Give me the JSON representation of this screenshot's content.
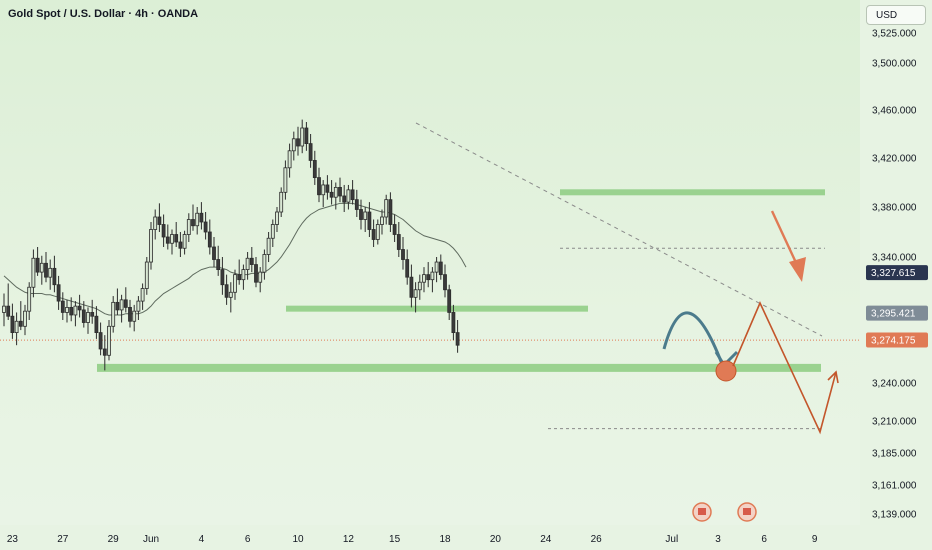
{
  "header": {
    "title": "Gold Spot / U.S. Dollar · 4h · OANDA",
    "currency": "USD"
  },
  "colors": {
    "up": "#26a69a",
    "down": "#ef5350",
    "candle_body": "#9c9c9c",
    "ma": "#5f6b5f",
    "zone": "#9ad28f",
    "forecast_blue": "#4b7b8c",
    "forecast_orange": "#c3562b",
    "badge_dark": "#2a3550",
    "badge_gray": "#7f8c97",
    "badge_orange": "#e07a55"
  },
  "chart_data": {
    "type": "candlestick",
    "symbol": "Gold Spot / U.S. Dollar",
    "interval": "4h",
    "source": "OANDA",
    "ylim": [
      3125,
      3540
    ],
    "y_ticks": [
      {
        "v": 3525,
        "label": "3,525.000"
      },
      {
        "v": 3500,
        "label": "3,500.000"
      },
      {
        "v": 3460,
        "label": "3,460.000"
      },
      {
        "v": 3420,
        "label": "3,420.000"
      },
      {
        "v": 3380,
        "label": "3,380.000"
      },
      {
        "v": 3340,
        "label": "3,340.000"
      },
      {
        "v": 3240,
        "label": "3,240.000"
      },
      {
        "v": 3210,
        "label": "3,210.000"
      },
      {
        "v": 3185,
        "label": "3,185.000"
      },
      {
        "v": 3161,
        "label": "3,161.000"
      },
      {
        "v": 3139,
        "label": "3,139.000"
      }
    ],
    "x_ticks": [
      {
        "i": 2,
        "label": "23"
      },
      {
        "i": 14,
        "label": "27"
      },
      {
        "i": 26,
        "label": "29"
      },
      {
        "i": 35,
        "label": "Jun"
      },
      {
        "i": 47,
        "label": "4"
      },
      {
        "i": 58,
        "label": "6"
      },
      {
        "i": 70,
        "label": "10"
      },
      {
        "i": 82,
        "label": "12"
      },
      {
        "i": 93,
        "label": "15"
      },
      {
        "i": 105,
        "label": "18"
      },
      {
        "i": 117,
        "label": "20"
      },
      {
        "i": 129,
        "label": "24"
      },
      {
        "i": 141,
        "label": "26"
      },
      {
        "i": 159,
        "label": "Jul"
      },
      {
        "i": 170,
        "label": "3"
      },
      {
        "i": 181,
        "label": "6"
      },
      {
        "i": 193,
        "label": "9"
      }
    ],
    "candles": [
      [
        3296,
        3311,
        3285,
        3301
      ],
      [
        3301,
        3319,
        3290,
        3293
      ],
      [
        3293,
        3303,
        3275,
        3280
      ],
      [
        3280,
        3296,
        3270,
        3289
      ],
      [
        3289,
        3305,
        3282,
        3285
      ],
      [
        3285,
        3302,
        3278,
        3297
      ],
      [
        3297,
        3320,
        3290,
        3316
      ],
      [
        3316,
        3346,
        3308,
        3339
      ],
      [
        3339,
        3348,
        3325,
        3328
      ],
      [
        3328,
        3341,
        3318,
        3335
      ],
      [
        3335,
        3344,
        3320,
        3324
      ],
      [
        3324,
        3338,
        3314,
        3331
      ],
      [
        3331,
        3341,
        3312,
        3318
      ],
      [
        3318,
        3325,
        3298,
        3305
      ],
      [
        3305,
        3312,
        3290,
        3296
      ],
      [
        3296,
        3306,
        3288,
        3300
      ],
      [
        3300,
        3308,
        3289,
        3294
      ],
      [
        3294,
        3305,
        3285,
        3301
      ],
      [
        3301,
        3310,
        3292,
        3298
      ],
      [
        3298,
        3305,
        3284,
        3288
      ],
      [
        3288,
        3300,
        3279,
        3296
      ],
      [
        3296,
        3306,
        3287,
        3293
      ],
      [
        3293,
        3301,
        3275,
        3280
      ],
      [
        3280,
        3288,
        3262,
        3267
      ],
      [
        3267,
        3278,
        3250,
        3262
      ],
      [
        3262,
        3290,
        3258,
        3285
      ],
      [
        3285,
        3309,
        3280,
        3304
      ],
      [
        3304,
        3315,
        3294,
        3298
      ],
      [
        3298,
        3310,
        3288,
        3306
      ],
      [
        3306,
        3316,
        3296,
        3300
      ],
      [
        3300,
        3306,
        3284,
        3289
      ],
      [
        3289,
        3302,
        3281,
        3297
      ],
      [
        3297,
        3309,
        3290,
        3305
      ],
      [
        3305,
        3319,
        3298,
        3315
      ],
      [
        3315,
        3340,
        3310,
        3336
      ],
      [
        3336,
        3368,
        3330,
        3362
      ],
      [
        3362,
        3378,
        3354,
        3372
      ],
      [
        3372,
        3383,
        3360,
        3366
      ],
      [
        3366,
        3374,
        3348,
        3356
      ],
      [
        3356,
        3366,
        3346,
        3351
      ],
      [
        3351,
        3362,
        3342,
        3358
      ],
      [
        3358,
        3368,
        3348,
        3352
      ],
      [
        3352,
        3360,
        3340,
        3347
      ],
      [
        3347,
        3361,
        3342,
        3358
      ],
      [
        3358,
        3375,
        3352,
        3370
      ],
      [
        3370,
        3382,
        3361,
        3365
      ],
      [
        3365,
        3380,
        3358,
        3375
      ],
      [
        3375,
        3384,
        3362,
        3368
      ],
      [
        3368,
        3376,
        3354,
        3360
      ],
      [
        3360,
        3370,
        3342,
        3348
      ],
      [
        3348,
        3356,
        3332,
        3338
      ],
      [
        3338,
        3349,
        3325,
        3330
      ],
      [
        3330,
        3340,
        3310,
        3318
      ],
      [
        3318,
        3326,
        3302,
        3308
      ],
      [
        3308,
        3320,
        3296,
        3312
      ],
      [
        3312,
        3330,
        3306,
        3326
      ],
      [
        3326,
        3338,
        3318,
        3322
      ],
      [
        3322,
        3334,
        3314,
        3330
      ],
      [
        3330,
        3344,
        3322,
        3339
      ],
      [
        3339,
        3348,
        3328,
        3334
      ],
      [
        3334,
        3340,
        3316,
        3320
      ],
      [
        3320,
        3332,
        3312,
        3328
      ],
      [
        3328,
        3346,
        3322,
        3342
      ],
      [
        3342,
        3360,
        3336,
        3355
      ],
      [
        3355,
        3370,
        3348,
        3366
      ],
      [
        3366,
        3380,
        3360,
        3376
      ],
      [
        3376,
        3396,
        3372,
        3392
      ],
      [
        3392,
        3418,
        3386,
        3412
      ],
      [
        3412,
        3432,
        3404,
        3426
      ],
      [
        3426,
        3442,
        3418,
        3436
      ],
      [
        3436,
        3446,
        3422,
        3430
      ],
      [
        3430,
        3452,
        3424,
        3445
      ],
      [
        3445,
        3450,
        3426,
        3432
      ],
      [
        3432,
        3440,
        3412,
        3418
      ],
      [
        3418,
        3426,
        3398,
        3404
      ],
      [
        3404,
        3412,
        3384,
        3390
      ],
      [
        3390,
        3402,
        3380,
        3398
      ],
      [
        3398,
        3406,
        3386,
        3392
      ],
      [
        3392,
        3402,
        3382,
        3388
      ],
      [
        3388,
        3400,
        3378,
        3396
      ],
      [
        3396,
        3404,
        3384,
        3389
      ],
      [
        3389,
        3398,
        3376,
        3384
      ],
      [
        3384,
        3398,
        3378,
        3394
      ],
      [
        3394,
        3402,
        3382,
        3386
      ],
      [
        3386,
        3394,
        3372,
        3378
      ],
      [
        3378,
        3386,
        3362,
        3370
      ],
      [
        3370,
        3380,
        3360,
        3376
      ],
      [
        3376,
        3384,
        3356,
        3362
      ],
      [
        3362,
        3370,
        3348,
        3354
      ],
      [
        3354,
        3370,
        3350,
        3366
      ],
      [
        3366,
        3378,
        3358,
        3372
      ],
      [
        3372,
        3390,
        3366,
        3386
      ],
      [
        3386,
        3392,
        3360,
        3366
      ],
      [
        3366,
        3374,
        3352,
        3358
      ],
      [
        3358,
        3368,
        3340,
        3346
      ],
      [
        3346,
        3356,
        3330,
        3338
      ],
      [
        3338,
        3346,
        3318,
        3324
      ],
      [
        3324,
        3334,
        3300,
        3308
      ],
      [
        3308,
        3320,
        3296,
        3314
      ],
      [
        3314,
        3326,
        3306,
        3320
      ],
      [
        3320,
        3332,
        3312,
        3326
      ],
      [
        3326,
        3336,
        3316,
        3322
      ],
      [
        3322,
        3332,
        3312,
        3328
      ],
      [
        3328,
        3340,
        3320,
        3336
      ],
      [
        3336,
        3342,
        3322,
        3326
      ],
      [
        3326,
        3334,
        3308,
        3314
      ],
      [
        3314,
        3318,
        3290,
        3296
      ],
      [
        3296,
        3302,
        3274,
        3280
      ],
      [
        3280,
        3290,
        3264,
        3270
      ]
    ],
    "ma": [
      3325,
      3322,
      3319,
      3316,
      3314,
      3312,
      3311,
      3311,
      3311,
      3311,
      3310,
      3310,
      3309,
      3308,
      3307,
      3306,
      3305,
      3304,
      3303,
      3302,
      3301,
      3300,
      3299,
      3297,
      3295,
      3294,
      3294,
      3294,
      3294,
      3295,
      3295,
      3295,
      3295,
      3296,
      3298,
      3301,
      3305,
      3308,
      3311,
      3313,
      3315,
      3317,
      3319,
      3321,
      3323,
      3326,
      3328,
      3330,
      3331,
      3332,
      3332,
      3332,
      3331,
      3330,
      3328,
      3327,
      3326,
      3326,
      3326,
      3327,
      3327,
      3327,
      3328,
      3330,
      3333,
      3336,
      3340,
      3345,
      3350,
      3356,
      3362,
      3367,
      3371,
      3374,
      3376,
      3378,
      3379,
      3380,
      3381,
      3382,
      3383,
      3383,
      3383,
      3383,
      3382,
      3381,
      3380,
      3379,
      3378,
      3377,
      3376,
      3376,
      3375,
      3374,
      3372,
      3370,
      3367,
      3364,
      3361,
      3359,
      3357,
      3356,
      3355,
      3354,
      3353,
      3352,
      3350,
      3347,
      3343,
      3338,
      3332
    ],
    "levels": {
      "resistance": 3392,
      "mid_support": 3299,
      "support": 3252,
      "dashed_upper": 3347,
      "dashed_lower": 3204
    },
    "current_price": {
      "label": "3,274.175",
      "value": 3274
    },
    "price_badges": [
      {
        "label": "3,327.615",
        "value": 3327.615
      },
      {
        "label": "3,295.421",
        "value": 3295.421
      },
      {
        "label": "3,274.175",
        "value": 3274.175
      }
    ]
  }
}
